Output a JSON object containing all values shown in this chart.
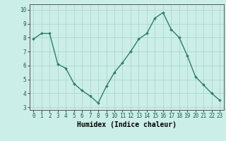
{
  "x": [
    0,
    1,
    2,
    3,
    4,
    5,
    6,
    7,
    8,
    9,
    10,
    11,
    12,
    13,
    14,
    15,
    16,
    17,
    18,
    19,
    20,
    21,
    22,
    23
  ],
  "y": [
    7.9,
    8.3,
    8.3,
    6.1,
    5.8,
    4.7,
    4.2,
    3.8,
    3.3,
    4.5,
    5.5,
    6.2,
    7.0,
    7.9,
    8.3,
    9.4,
    9.8,
    8.6,
    8.0,
    6.7,
    5.2,
    4.6,
    4.0,
    3.5
  ],
  "line_color": "#2e7d6e",
  "marker": "D",
  "marker_size": 1.8,
  "bg_color": "#cceee8",
  "grid_color": "#aad8d0",
  "xlabel": "Humidex (Indice chaleur)",
  "xlabel_fontsize": 7,
  "tick_fontsize": 5.5,
  "xlim": [
    -0.5,
    23.5
  ],
  "ylim": [
    2.8,
    10.4
  ],
  "yticks": [
    3,
    4,
    5,
    6,
    7,
    8,
    9,
    10
  ],
  "xticks": [
    0,
    1,
    2,
    3,
    4,
    5,
    6,
    7,
    8,
    9,
    10,
    11,
    12,
    13,
    14,
    15,
    16,
    17,
    18,
    19,
    20,
    21,
    22,
    23
  ],
  "line_width": 1.0
}
